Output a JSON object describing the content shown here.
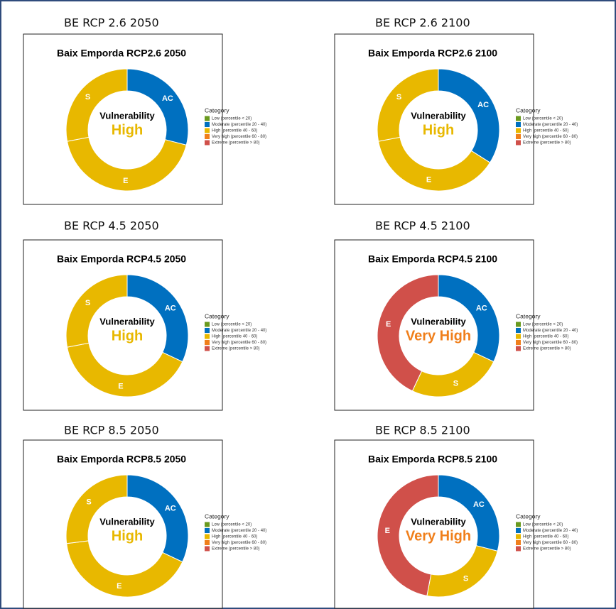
{
  "chart_data": [
    {
      "type": "pie",
      "heading": "BE RCP 2.6 2050",
      "title": "Baix Emporda RCP2.6 2050",
      "center_label": "Vulnerability",
      "center_value": "High",
      "center_color": "#e8b800",
      "categories": [
        "AC",
        "E",
        "S"
      ],
      "values": [
        29,
        43,
        28
      ],
      "colors": [
        "#0070c0",
        "#e8b800",
        "#e8b800"
      ],
      "legend_title": "Category",
      "legend": [
        {
          "label": "Low (percentile < 20)",
          "color": "#6a9a1f"
        },
        {
          "label": "Moderate (percentile 20 - 40)",
          "color": "#0070c0"
        },
        {
          "label": "High (percentile 40 - 60)",
          "color": "#e8b800"
        },
        {
          "label": "Very high (percentile 60 - 80)",
          "color": "#f07f1b"
        },
        {
          "label": "Extreme (percentile > 80)",
          "color": "#d0504a"
        }
      ]
    },
    {
      "type": "pie",
      "heading": "BE RCP 2.6 2100",
      "title": "Baix Emporda RCP2.6 2100",
      "center_label": "Vulnerability",
      "center_value": "High",
      "center_color": "#e8b800",
      "categories": [
        "AC",
        "E",
        "S"
      ],
      "values": [
        34,
        38,
        28
      ],
      "colors": [
        "#0070c0",
        "#e8b800",
        "#e8b800"
      ],
      "legend_title": "Category",
      "legend": [
        {
          "label": "Low (percentile < 20)",
          "color": "#6a9a1f"
        },
        {
          "label": "Moderate (percentile 20 - 40)",
          "color": "#0070c0"
        },
        {
          "label": "High (percentile 40 - 60)",
          "color": "#e8b800"
        },
        {
          "label": "Very high (percentile 60 - 80)",
          "color": "#f07f1b"
        },
        {
          "label": "Extreme (percentile > 80)",
          "color": "#d0504a"
        }
      ]
    },
    {
      "type": "pie",
      "heading": "BE RCP 4.5 2050",
      "title": "Baix Emporda RCP4.5 2050",
      "center_label": "Vulnerability",
      "center_value": "High",
      "center_color": "#e8b800",
      "categories": [
        "AC",
        "E",
        "S"
      ],
      "values": [
        32,
        40,
        28
      ],
      "colors": [
        "#0070c0",
        "#e8b800",
        "#e8b800"
      ],
      "legend_title": "Category",
      "legend": [
        {
          "label": "Low (percentile < 20)",
          "color": "#6a9a1f"
        },
        {
          "label": "Moderate (percentile 20 - 40)",
          "color": "#0070c0"
        },
        {
          "label": "High (percentile 40 - 60)",
          "color": "#e8b800"
        },
        {
          "label": "Very high (percentile 60 - 80)",
          "color": "#f07f1b"
        },
        {
          "label": "Extreme (percentile > 80)",
          "color": "#d0504a"
        }
      ]
    },
    {
      "type": "pie",
      "heading": "BE RCP 4.5 2100",
      "title": "Baix Emporda RCP4.5 2100",
      "center_label": "Vulnerability",
      "center_value": "Very High",
      "center_color": "#f07f1b",
      "categories": [
        "AC",
        "S",
        "E"
      ],
      "values": [
        32,
        25,
        43
      ],
      "colors": [
        "#0070c0",
        "#e8b800",
        "#d0504a"
      ],
      "legend_title": "Category",
      "legend": [
        {
          "label": "Low (percentile < 20)",
          "color": "#6a9a1f"
        },
        {
          "label": "Moderate (percentile 20 - 40)",
          "color": "#0070c0"
        },
        {
          "label": "High (percentile 40 - 60)",
          "color": "#e8b800"
        },
        {
          "label": "Very high (percentile 60 - 80)",
          "color": "#f07f1b"
        },
        {
          "label": "Extreme (percentile > 80)",
          "color": "#d0504a"
        }
      ]
    },
    {
      "type": "pie",
      "heading": "BE RCP 8.5 2050",
      "title": "Baix Emporda RCP8.5 2050",
      "center_label": "Vulnerability",
      "center_value": "High",
      "center_color": "#e8b800",
      "categories": [
        "AC",
        "E",
        "S"
      ],
      "values": [
        32,
        41,
        27
      ],
      "colors": [
        "#0070c0",
        "#e8b800",
        "#e8b800"
      ],
      "legend_title": "Category",
      "legend": [
        {
          "label": "Low (percentile < 20)",
          "color": "#6a9a1f"
        },
        {
          "label": "Moderate (percentile 20 - 40)",
          "color": "#0070c0"
        },
        {
          "label": "High (percentile 40 - 60)",
          "color": "#e8b800"
        },
        {
          "label": "Very high (percentile 60 - 80)",
          "color": "#f07f1b"
        },
        {
          "label": "Extreme (percentile > 80)",
          "color": "#d0504a"
        }
      ]
    },
    {
      "type": "pie",
      "heading": "BE RCP 8.5 2100",
      "title": "Baix Emporda RCP8.5 2100",
      "center_label": "Vulnerability",
      "center_value": "Very High",
      "center_color": "#f07f1b",
      "categories": [
        "AC",
        "S",
        "E"
      ],
      "values": [
        29,
        24,
        47
      ],
      "colors": [
        "#0070c0",
        "#e8b800",
        "#d0504a"
      ],
      "legend_title": "Category",
      "legend": [
        {
          "label": "Low (percentile < 20)",
          "color": "#6a9a1f"
        },
        {
          "label": "Moderate (percentile 20 - 40)",
          "color": "#0070c0"
        },
        {
          "label": "High (percentile 40 - 60)",
          "color": "#e8b800"
        },
        {
          "label": "Very high (percentile 60 - 80)",
          "color": "#f07f1b"
        },
        {
          "label": "Extreme (percentile > 80)",
          "color": "#d0504a"
        }
      ]
    }
  ]
}
